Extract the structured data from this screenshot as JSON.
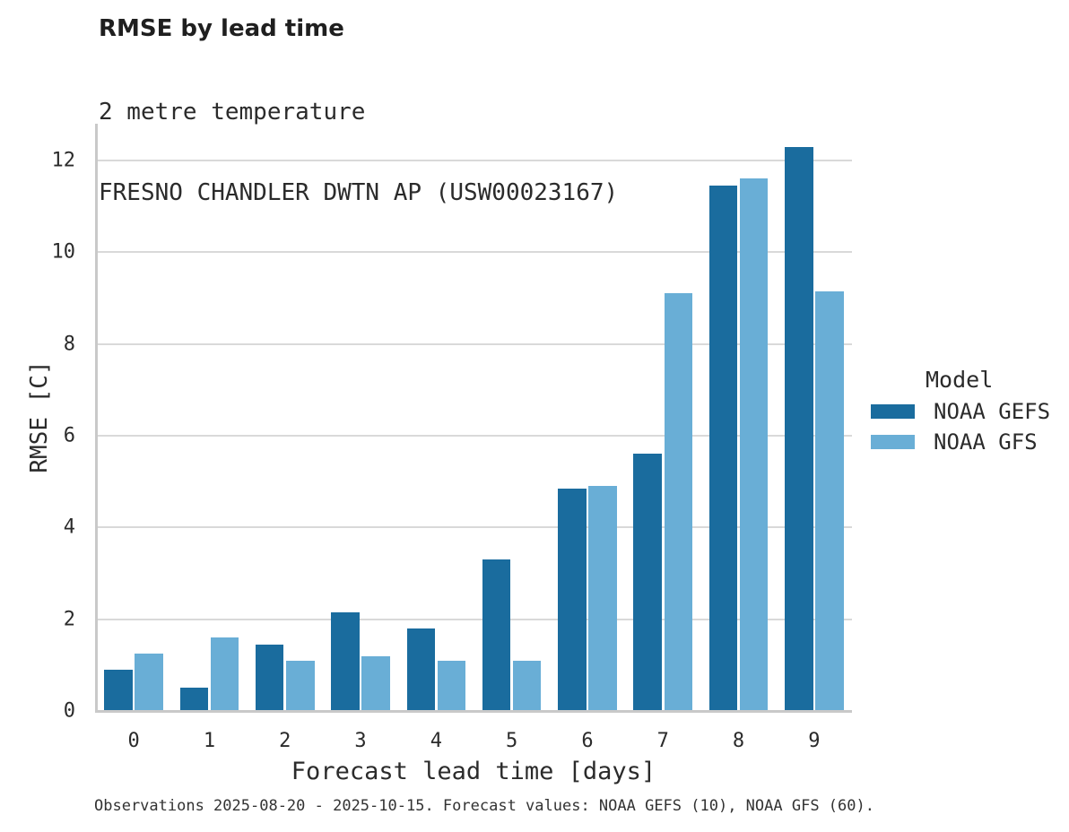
{
  "header": {
    "title": "RMSE by lead time",
    "subtitle_line1": "2 metre temperature",
    "subtitle_line2": "FRESNO CHANDLER DWTN AP (USW00023167)"
  },
  "axes": {
    "xlabel": "Forecast lead time [days]",
    "ylabel": "RMSE [C]"
  },
  "legend": {
    "title": "Model",
    "items": [
      {
        "label": "NOAA GEFS",
        "color": "#1a6c9e"
      },
      {
        "label": "NOAA GFS",
        "color": "#69aed6"
      }
    ]
  },
  "caption": "Observations 2025-08-20 - 2025-10-15. Forecast values: NOAA GEFS (10), NOAA GFS (60).",
  "chart_data": {
    "type": "bar",
    "title": "RMSE by lead time",
    "subtitle": [
      "2 metre temperature",
      "FRESNO CHANDLER DWTN AP (USW00023167)"
    ],
    "xlabel": "Forecast lead time [days]",
    "ylabel": "RMSE [C]",
    "categories": [
      "0",
      "1",
      "2",
      "3",
      "4",
      "5",
      "6",
      "7",
      "8",
      "9"
    ],
    "series": [
      {
        "name": "NOAA GEFS",
        "color": "#1a6c9e",
        "values": [
          0.9,
          0.5,
          1.45,
          2.15,
          1.8,
          3.3,
          4.85,
          5.6,
          11.45,
          12.3
        ]
      },
      {
        "name": "NOAA GFS",
        "color": "#69aed6",
        "values": [
          1.25,
          1.6,
          1.1,
          1.2,
          1.1,
          1.1,
          4.9,
          9.1,
          11.6,
          9.15
        ]
      }
    ],
    "yticks": [
      0,
      2,
      4,
      6,
      8,
      10,
      12
    ],
    "ylim": [
      0,
      12.8
    ],
    "grid": true,
    "legend_title": "Model",
    "legend_position": "right",
    "colors": {
      "gridline": "#d9d9d9",
      "spine": "#c9c9c9",
      "text": "#2b2b2b"
    }
  }
}
